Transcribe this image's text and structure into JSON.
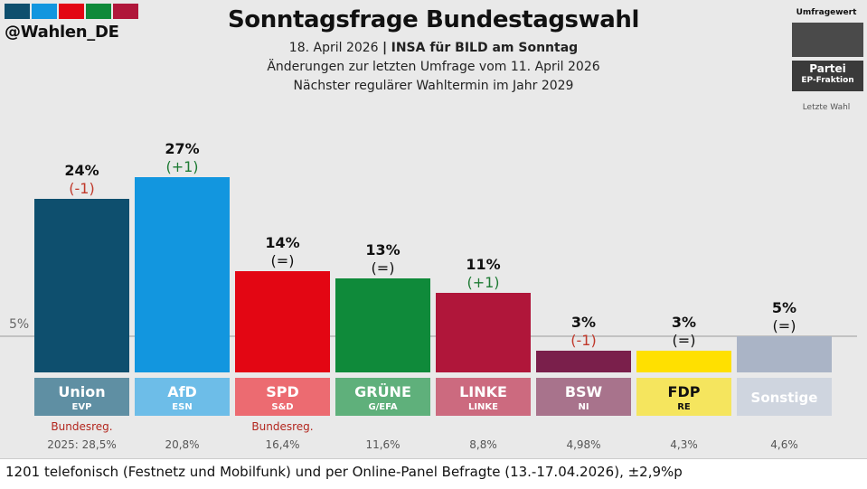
{
  "header": {
    "handle": "@Wahlen_DE",
    "title": "Sonntagsfrage Bundestagswahl",
    "date": "18. April 2026",
    "separator": "|",
    "institute": "INSA für BILD am Sonntag",
    "changes_note": "Änderungen zur letzten Umfrage vom 11. April 2026",
    "next_election": "Nächster regulärer Wahltermin im Jahr 2029",
    "flag_colors": [
      "#0e4f6e",
      "#1296df",
      "#e30613",
      "#0f8a3a",
      "#b0163a"
    ]
  },
  "legend": {
    "title": "Umfragewert",
    "party": "Partei",
    "faction": "EP-Fraktion",
    "last_election": "Letzte Wahl"
  },
  "chart_data": {
    "type": "bar",
    "title": "Sonntagsfrage Bundestagswahl",
    "unit": "%",
    "ylim": [
      0,
      30
    ],
    "reference_line": {
      "value": 5,
      "label": "5%"
    },
    "categories": [
      "Union",
      "AfD",
      "SPD",
      "GRÜNE",
      "LINKE",
      "BSW",
      "FDP",
      "Sonstige"
    ],
    "values": [
      24,
      27,
      14,
      13,
      11,
      3,
      3,
      5
    ],
    "value_labels": [
      "24%",
      "27%",
      "14%",
      "13%",
      "11%",
      "3%",
      "3%",
      "5%"
    ],
    "changes": [
      "(-1)",
      "(+1)",
      "(=)",
      "(=)",
      "(+1)",
      "(-1)",
      "(=)",
      "(=)"
    ],
    "change_colors": [
      "#c0392b",
      "#1e7b34",
      "#111111",
      "#111111",
      "#1e7b34",
      "#c0392b",
      "#111111",
      "#111111"
    ],
    "factions": [
      "EVP",
      "ESN",
      "S&D",
      "G/EFA",
      "LINKE",
      "NI",
      "RE",
      ""
    ],
    "government": [
      "Bundesreg.",
      "",
      "Bundesreg.",
      "",
      "",
      "",
      "",
      ""
    ],
    "last_election": [
      "2025: 28,5%",
      "20,8%",
      "16,4%",
      "11,6%",
      "8,8%",
      "4,98%",
      "4,3%",
      "4,6%"
    ],
    "bar_colors": [
      "#0e4f6e",
      "#1296df",
      "#e30613",
      "#0f8a3a",
      "#b0163a",
      "#7a1f4b",
      "#ffe000",
      "#aab4c6"
    ],
    "label_colors": [
      "#5f8fa3",
      "#6dbde8",
      "#ec6b71",
      "#5fb07b",
      "#cc6a7f",
      "#a8738c",
      "#f5e55e",
      "#cfd5df"
    ],
    "label_text_colors": [
      "#ffffff",
      "#ffffff",
      "#ffffff",
      "#ffffff",
      "#ffffff",
      "#ffffff",
      "#111111",
      "#ffffff"
    ]
  },
  "footer": {
    "methodology": "1201 telefonisch (Festnetz und Mobilfunk) und per Online-Panel Befragte (13.-17.04.2026), ±2,9%p"
  }
}
